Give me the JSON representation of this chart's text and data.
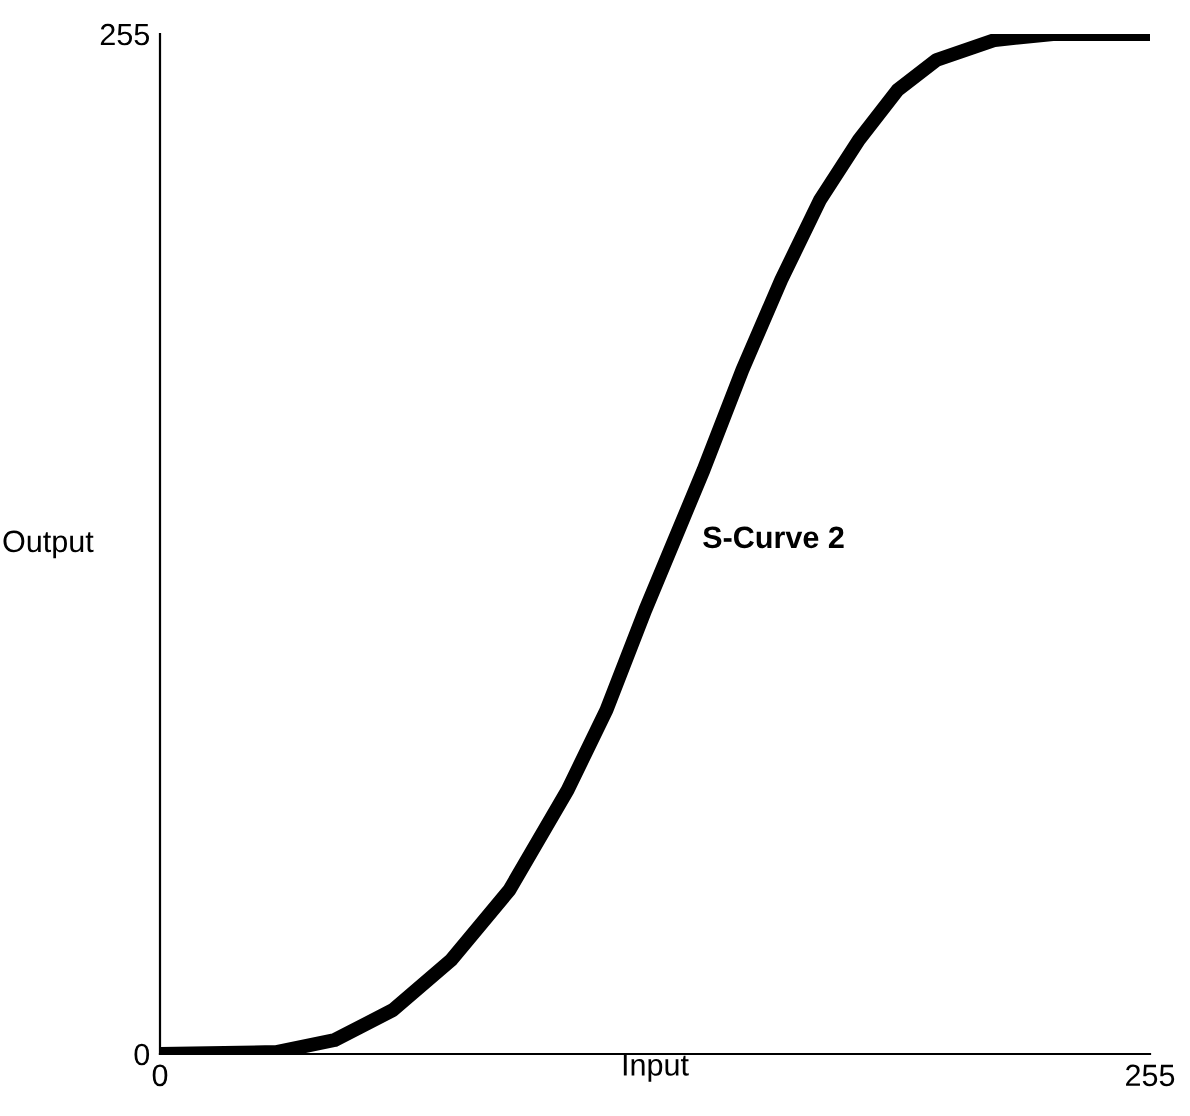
{
  "chart_data": {
    "type": "line",
    "xlabel": "Input",
    "ylabel": "Output",
    "xlim": [
      0,
      255
    ],
    "ylim": [
      0,
      255
    ],
    "xticks": [
      0,
      255
    ],
    "yticks": [
      0,
      255
    ],
    "grid": false,
    "legend": false,
    "x": [
      0,
      30,
      45,
      60,
      75,
      90,
      105,
      115,
      125,
      132.5,
      140,
      150,
      160,
      170,
      180,
      190,
      200,
      215,
      230,
      255
    ],
    "series": [
      {
        "name": "S-Curve 2",
        "color": "#000000",
        "values": [
          0,
          0.5,
          3.5,
          11,
          23.5,
          41,
          66,
          86,
          111,
          128.5,
          146,
          171,
          193.5,
          213.5,
          228.5,
          241,
          248.5,
          253.5,
          255,
          255
        ]
      }
    ]
  }
}
